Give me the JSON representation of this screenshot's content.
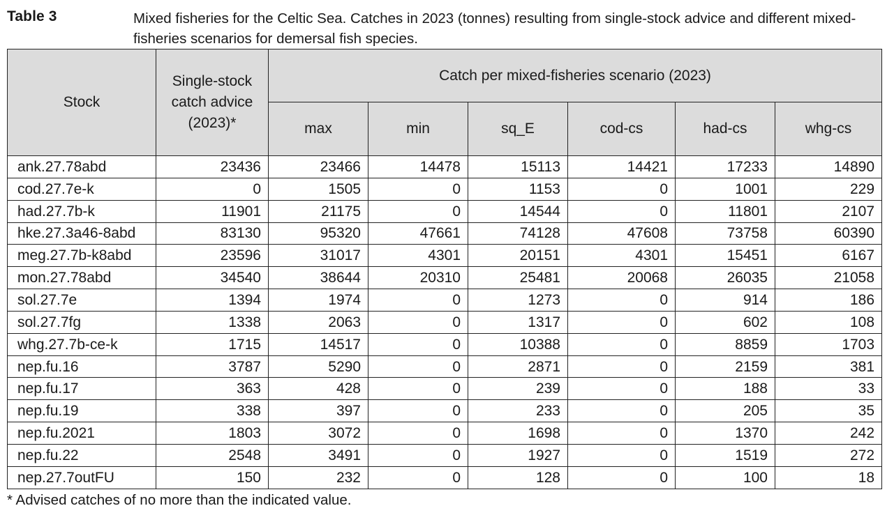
{
  "caption": {
    "label": "Table 3",
    "text": "Mixed fisheries for the Celtic Sea. Catches in 2023 (tonnes) resulting from single-stock advice and different mixed-fisheries scenarios for demersal fish species."
  },
  "table": {
    "header_stock": "Stock",
    "header_advice": "Single-stock catch advice (2023)*",
    "header_group": "Catch per mixed-fisheries scenario (2023)",
    "scenarios": [
      "max",
      "min",
      "sq_E",
      "cod-cs",
      "had-cs",
      "whg-cs"
    ],
    "rows": [
      {
        "stock": "ank.27.78abd",
        "advice": "23436",
        "values": [
          "23466",
          "14478",
          "15113",
          "14421",
          "17233",
          "14890"
        ]
      },
      {
        "stock": "cod.27.7e-k",
        "advice": "0",
        "values": [
          "1505",
          "0",
          "1153",
          "0",
          "1001",
          "229"
        ]
      },
      {
        "stock": "had.27.7b-k",
        "advice": "11901",
        "values": [
          "21175",
          "0",
          "14544",
          "0",
          "11801",
          "2107"
        ]
      },
      {
        "stock": "hke.27.3a46-8abd",
        "advice": "83130",
        "values": [
          "95320",
          "47661",
          "74128",
          "47608",
          "73758",
          "60390"
        ]
      },
      {
        "stock": "meg.27.7b-k8abd",
        "advice": "23596",
        "values": [
          "31017",
          "4301",
          "20151",
          "4301",
          "15451",
          "6167"
        ]
      },
      {
        "stock": "mon.27.78abd",
        "advice": "34540",
        "values": [
          "38644",
          "20310",
          "25481",
          "20068",
          "26035",
          "21058"
        ]
      },
      {
        "stock": "sol.27.7e",
        "advice": "1394",
        "values": [
          "1974",
          "0",
          "1273",
          "0",
          "914",
          "186"
        ]
      },
      {
        "stock": "sol.27.7fg",
        "advice": "1338",
        "values": [
          "2063",
          "0",
          "1317",
          "0",
          "602",
          "108"
        ]
      },
      {
        "stock": "whg.27.7b-ce-k",
        "advice": "1715",
        "values": [
          "14517",
          "0",
          "10388",
          "0",
          "8859",
          "1703"
        ]
      },
      {
        "stock": "nep.fu.16",
        "advice": "3787",
        "values": [
          "5290",
          "0",
          "2871",
          "0",
          "2159",
          "381"
        ]
      },
      {
        "stock": "nep.fu.17",
        "advice": "363",
        "values": [
          "428",
          "0",
          "239",
          "0",
          "188",
          "33"
        ]
      },
      {
        "stock": "nep.fu.19",
        "advice": "338",
        "values": [
          "397",
          "0",
          "233",
          "0",
          "205",
          "35"
        ]
      },
      {
        "stock": "nep.fu.2021",
        "advice": "1803",
        "values": [
          "3072",
          "0",
          "1698",
          "0",
          "1370",
          "242"
        ]
      },
      {
        "stock": "nep.fu.22",
        "advice": "2548",
        "values": [
          "3491",
          "0",
          "1927",
          "0",
          "1519",
          "272"
        ]
      },
      {
        "stock": "nep.27.7outFU",
        "advice": "150",
        "values": [
          "232",
          "0",
          "128",
          "0",
          "100",
          "18"
        ]
      }
    ]
  },
  "footnote": "* Advised catches of no more than the indicated value."
}
